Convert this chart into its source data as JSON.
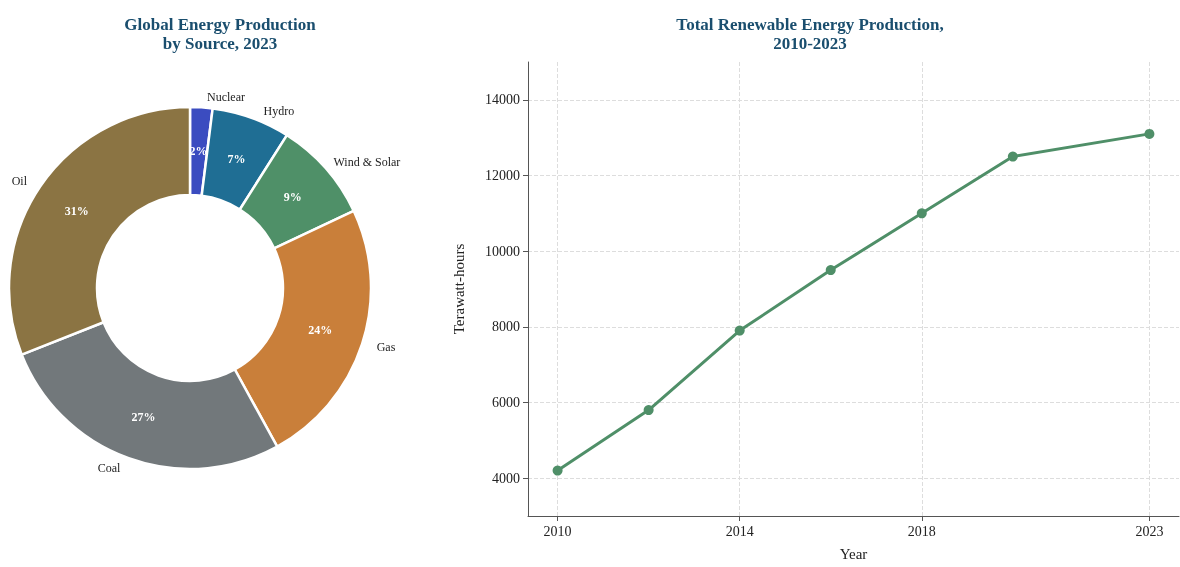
{
  "chart_data": [
    {
      "type": "donut",
      "title": "Global Energy Production\nby Source, 2023",
      "categories": [
        "Nuclear",
        "Hydro",
        "Wind & Solar",
        "Gas",
        "Coal",
        "Oil"
      ],
      "values": [
        2,
        7,
        9,
        24,
        27,
        31
      ],
      "value_labels": [
        "2%",
        "7%",
        "9%",
        "24%",
        "27%",
        "31%"
      ],
      "colors": [
        "#3b4cc0",
        "#1f6e94",
        "#4f9068",
        "#c97f3a",
        "#72787b",
        "#8b7443"
      ],
      "legend": false
    },
    {
      "type": "line",
      "title": "Total Renewable Energy Production,\n2010-2023",
      "xlabel": "Year",
      "ylabel": "Terawatt-hours",
      "x": [
        2010,
        2012,
        2014,
        2016,
        2018,
        2020,
        2023
      ],
      "series": [
        {
          "color": "#4f8f68",
          "values": [
            4200,
            5800,
            7900,
            9500,
            11000,
            12500,
            13100
          ]
        }
      ],
      "xlim": [
        2009.35,
        2023.65
      ],
      "xticks": [
        2010,
        2014,
        2018,
        2023
      ],
      "ylim": [
        3000,
        15000
      ],
      "yticks": [
        4000,
        6000,
        8000,
        10000,
        12000,
        14000
      ],
      "grid": true,
      "legend": false,
      "marker": "circle",
      "line_style": "solid"
    }
  ]
}
